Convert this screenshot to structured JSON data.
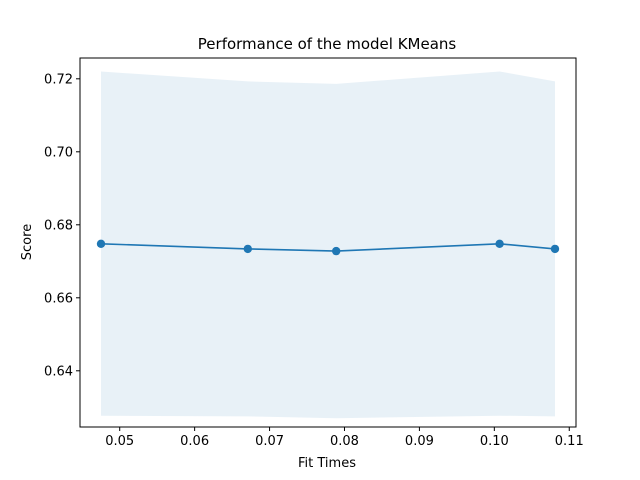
{
  "chart_data": {
    "type": "line",
    "title": "Performance of the model KMeans",
    "xlabel": "Fit Times",
    "ylabel": "Score",
    "xlim": [
      0.0447,
      0.1109
    ],
    "ylim": [
      0.6246,
      0.7257
    ],
    "x_ticks": [
      "0.05",
      "0.06",
      "0.07",
      "0.08",
      "0.09",
      "0.10",
      "0.11"
    ],
    "x_tick_values": [
      0.05,
      0.06,
      0.07,
      0.08,
      0.09,
      0.1,
      0.11
    ],
    "y_ticks": [
      "0.64",
      "0.66",
      "0.68",
      "0.70",
      "0.72"
    ],
    "y_tick_values": [
      0.64,
      0.66,
      0.68,
      0.7,
      0.72
    ],
    "grid": false,
    "series": [
      {
        "color": "#1f77b4",
        "marker": "circle",
        "x": [
          0.0475,
          0.0671,
          0.0789,
          0.1007,
          0.1081
        ],
        "y": [
          0.6748,
          0.6734,
          0.6728,
          0.6748,
          0.6734
        ]
      }
    ],
    "band": {
      "color": "#1f77b4",
      "opacity": 0.1,
      "x": [
        0.0475,
        0.0671,
        0.0789,
        0.1007,
        0.1081
      ],
      "upper": [
        0.722,
        0.7193,
        0.7186,
        0.722,
        0.7193
      ],
      "lower": [
        0.6277,
        0.6275,
        0.627,
        0.6277,
        0.6275
      ]
    }
  }
}
